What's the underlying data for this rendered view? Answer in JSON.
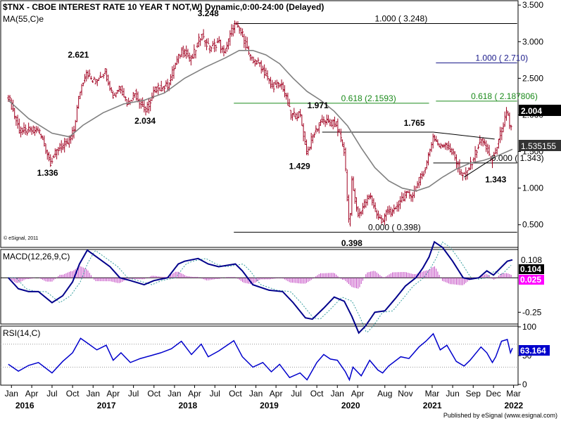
{
  "chart_data": [
    {
      "type": "candlestick",
      "title": "$TNX - CBOE INTEREST RATE 10 YEAR T NOT,W) Dynamic,0:00-24:00 (Delayed)",
      "indicator": "MA(55,C)e",
      "copyright": "© eSignal, 2011",
      "y_axis": {
        "min": 0.2,
        "max": 3.55,
        "ticks": [
          "0.500",
          "1.000",
          "1.500",
          "2.000",
          "2.500",
          "3.000",
          "3.500"
        ]
      },
      "last_price_label": "2.004",
      "ma_label": "1.535155",
      "price_path": [
        [
          "2016-01-01",
          2.26
        ],
        [
          "2016-02-20",
          1.78
        ],
        [
          "2016-04-01",
          1.78
        ],
        [
          "2016-05-15",
          1.8
        ],
        [
          "2016-07-08",
          1.36
        ],
        [
          "2016-08-15",
          1.55
        ],
        [
          "2016-09-20",
          1.6
        ],
        [
          "2016-10-20",
          1.78
        ],
        [
          "2016-11-15",
          2.3
        ],
        [
          "2016-12-15",
          2.6
        ],
        [
          "2017-01-15",
          2.45
        ],
        [
          "2017-03-10",
          2.6
        ],
        [
          "2017-04-15",
          2.25
        ],
        [
          "2017-05-15",
          2.4
        ],
        [
          "2017-06-20",
          2.15
        ],
        [
          "2017-07-20",
          2.3
        ],
        [
          "2017-09-08",
          2.05
        ],
        [
          "2017-10-20",
          2.35
        ],
        [
          "2017-12-15",
          2.4
        ],
        [
          "2018-01-20",
          2.7
        ],
        [
          "2018-02-20",
          2.9
        ],
        [
          "2018-04-01",
          2.75
        ],
        [
          "2018-05-15",
          3.1
        ],
        [
          "2018-06-20",
          2.9
        ],
        [
          "2018-08-01",
          3.0
        ],
        [
          "2018-08-25",
          2.82
        ],
        [
          "2018-10-08",
          3.24
        ],
        [
          "2018-11-15",
          3.1
        ],
        [
          "2018-12-25",
          2.74
        ],
        [
          "2019-02-01",
          2.7
        ],
        [
          "2019-03-25",
          2.4
        ],
        [
          "2019-05-15",
          2.4
        ],
        [
          "2019-06-20",
          2.0
        ],
        [
          "2019-08-01",
          2.0
        ],
        [
          "2019-09-01",
          1.47
        ],
        [
          "2019-09-25",
          1.7
        ],
        [
          "2019-11-08",
          1.94
        ],
        [
          "2019-12-15",
          1.88
        ],
        [
          "2020-01-10",
          1.88
        ],
        [
          "2020-02-15",
          1.5
        ],
        [
          "2020-03-09",
          0.4
        ],
        [
          "2020-03-20",
          1.1
        ],
        [
          "2020-04-15",
          0.62
        ],
        [
          "2020-06-08",
          0.9
        ],
        [
          "2020-07-15",
          0.62
        ],
        [
          "2020-08-05",
          0.52
        ],
        [
          "2020-08-25",
          0.72
        ],
        [
          "2020-09-20",
          0.65
        ],
        [
          "2020-10-25",
          0.85
        ],
        [
          "2020-11-15",
          0.9
        ],
        [
          "2020-12-20",
          0.92
        ],
        [
          "2021-01-15",
          1.1
        ],
        [
          "2021-02-15",
          1.3
        ],
        [
          "2021-03-20",
          1.72
        ],
        [
          "2021-04-20",
          1.55
        ],
        [
          "2021-05-15",
          1.62
        ],
        [
          "2021-06-20",
          1.45
        ],
        [
          "2021-07-20",
          1.2
        ],
        [
          "2021-08-05",
          1.15
        ],
        [
          "2021-09-01",
          1.3
        ],
        [
          "2021-10-20",
          1.67
        ],
        [
          "2021-11-15",
          1.55
        ],
        [
          "2021-12-05",
          1.35
        ],
        [
          "2021-12-25",
          1.5
        ],
        [
          "2022-01-20",
          1.8
        ],
        [
          "2022-02-15",
          2.05
        ],
        [
          "2022-03-01",
          1.72
        ],
        [
          "2022-03-10",
          2.0
        ]
      ],
      "ma55": [
        [
          "2016-01-01",
          2.2
        ],
        [
          "2016-04-01",
          1.95
        ],
        [
          "2016-07-15",
          1.75
        ],
        [
          "2016-10-01",
          1.7
        ],
        [
          "2016-12-01",
          1.86
        ],
        [
          "2017-03-01",
          2.03
        ],
        [
          "2017-06-01",
          2.15
        ],
        [
          "2017-09-01",
          2.2
        ],
        [
          "2017-12-01",
          2.3
        ],
        [
          "2018-03-01",
          2.5
        ],
        [
          "2018-06-01",
          2.65
        ],
        [
          "2018-09-01",
          2.78
        ],
        [
          "2018-11-01",
          2.88
        ],
        [
          "2019-01-01",
          2.88
        ],
        [
          "2019-03-01",
          2.82
        ],
        [
          "2019-05-01",
          2.7
        ],
        [
          "2019-07-01",
          2.5
        ],
        [
          "2019-09-01",
          2.32
        ],
        [
          "2019-11-01",
          2.2
        ],
        [
          "2020-01-01",
          2.05
        ],
        [
          "2020-03-01",
          1.85
        ],
        [
          "2020-05-01",
          1.55
        ],
        [
          "2020-07-01",
          1.28
        ],
        [
          "2020-09-01",
          1.1
        ],
        [
          "2020-11-01",
          1.0
        ],
        [
          "2021-01-01",
          0.96
        ],
        [
          "2021-03-01",
          1.02
        ],
        [
          "2021-05-01",
          1.15
        ],
        [
          "2021-07-01",
          1.26
        ],
        [
          "2021-09-01",
          1.34
        ],
        [
          "2021-11-01",
          1.38
        ],
        [
          "2022-01-01",
          1.44
        ],
        [
          "2022-03-10",
          1.53
        ]
      ],
      "levels": [
        {
          "name": "top",
          "value": 3.248,
          "x_from": "2018-10-08",
          "x_to": "2022-03-31",
          "label": "1.000 ( 3.248)",
          "label_x": "2020-07-01",
          "color": "#000000"
        },
        {
          "name": "bottom",
          "value": 0.398,
          "x_from": "2018-10-08",
          "x_to": "2022-03-31",
          "label": "0.000 ( 0.398)",
          "label_x": "2020-06-01",
          "color": "#000000"
        },
        {
          "name": "fib618-a",
          "value": 2.1593,
          "x_from": "2018-10-08",
          "x_to": "2021-03-01",
          "label": "0.618 (2.1593)",
          "label_x": "2020-02-01",
          "color": "#1a8a1a"
        },
        {
          "name": "fib618-b",
          "value": 2.187806,
          "x_from": "2021-04-01",
          "x_to": "2022-03-31",
          "label": "0.618 ( 2.187806)",
          "label_x": "2021-09-05",
          "color": "#1a8a1a"
        },
        {
          "name": "fib100",
          "value": 2.71,
          "x_from": "2021-04-01",
          "x_to": "2022-03-31",
          "label": "1.000 ( 2.710)",
          "label_x": "2021-09-25",
          "color": "#1a1a8a"
        },
        {
          "name": "base",
          "value": 1.343,
          "x_from": "2021-03-20",
          "x_to": "2022-03-31",
          "label": "0.000 ( 1.343)",
          "label_x": "2021-12-05",
          "color": "#000000"
        },
        {
          "name": "resistance",
          "value": 1.765,
          "x_from": "2019-11-08",
          "x_to": "2021-03-20",
          "label": "",
          "label_x": "",
          "color": "#000000"
        }
      ],
      "triangle": [
        {
          "from": [
            "2021-03-20",
            1.765
          ],
          "to": [
            "2021-12-20",
            1.67
          ]
        },
        {
          "from": [
            "2021-08-05",
            1.15
          ],
          "to": [
            "2021-12-20",
            1.42
          ]
        }
      ],
      "annotations": [
        {
          "text": "2.621",
          "x": "2016-11-10",
          "y": 2.78
        },
        {
          "text": "1.336",
          "x": "2016-06-25",
          "y": 1.17
        },
        {
          "text": "2.034",
          "x": "2017-09-05",
          "y": 1.88
        },
        {
          "text": "3.248",
          "x": "2018-06-15",
          "y": 3.35
        },
        {
          "text": "1.429",
          "x": "2019-07-30",
          "y": 1.26
        },
        {
          "text": "1.971",
          "x": "2019-10-20",
          "y": 2.09
        },
        {
          "text": "0.398",
          "x": "2020-03-20",
          "y": 0.21
        },
        {
          "text": "1.765",
          "x": "2020-12-25",
          "y": 1.85
        },
        {
          "text": "1.343",
          "x": "2021-12-25",
          "y": 1.08
        }
      ]
    },
    {
      "type": "line",
      "title": "MACD(12,26,9,C)",
      "y_axis": {
        "min": -0.33,
        "max": 0.2,
        "ticks": [
          "-0.25"
        ]
      },
      "value_labels": {
        "top": "0.108",
        "macd": "0.104",
        "histogram": "0.025"
      },
      "macd": [
        [
          "2016-01-01",
          0.0
        ],
        [
          "2016-02-15",
          -0.08
        ],
        [
          "2016-04-01",
          -0.1
        ],
        [
          "2016-05-15",
          -0.1
        ],
        [
          "2016-07-15",
          -0.18
        ],
        [
          "2016-09-01",
          -0.13
        ],
        [
          "2016-10-15",
          -0.03
        ],
        [
          "2016-11-15",
          0.1
        ],
        [
          "2016-12-20",
          0.2
        ],
        [
          "2017-02-01",
          0.15
        ],
        [
          "2017-04-01",
          0.08
        ],
        [
          "2017-05-15",
          0.0
        ],
        [
          "2017-07-01",
          -0.02
        ],
        [
          "2017-09-01",
          -0.05
        ],
        [
          "2017-10-15",
          -0.02
        ],
        [
          "2017-12-15",
          0.0
        ],
        [
          "2018-02-01",
          0.1
        ],
        [
          "2018-03-01",
          0.12
        ],
        [
          "2018-05-01",
          0.14
        ],
        [
          "2018-06-15",
          0.1
        ],
        [
          "2018-08-01",
          0.08
        ],
        [
          "2018-10-15",
          0.1
        ],
        [
          "2018-11-15",
          0.05
        ],
        [
          "2019-01-01",
          -0.05
        ],
        [
          "2019-03-15",
          -0.09
        ],
        [
          "2019-05-15",
          -0.1
        ],
        [
          "2019-07-01",
          -0.18
        ],
        [
          "2019-08-25",
          -0.29
        ],
        [
          "2019-09-25",
          -0.3
        ],
        [
          "2019-11-15",
          -0.22
        ],
        [
          "2020-01-01",
          -0.14
        ],
        [
          "2020-02-15",
          -0.17
        ],
        [
          "2020-03-20",
          -0.28
        ],
        [
          "2020-04-20",
          -0.4
        ],
        [
          "2020-05-20",
          -0.35
        ],
        [
          "2020-07-01",
          -0.25
        ],
        [
          "2020-08-15",
          -0.24
        ],
        [
          "2020-10-01",
          -0.15
        ],
        [
          "2020-11-15",
          -0.06
        ],
        [
          "2021-01-01",
          0.0
        ],
        [
          "2021-02-01",
          0.07
        ],
        [
          "2021-03-01",
          0.15
        ],
        [
          "2021-03-25",
          0.26
        ],
        [
          "2021-05-01",
          0.22
        ],
        [
          "2021-06-15",
          0.12
        ],
        [
          "2021-08-01",
          0.0
        ],
        [
          "2021-09-01",
          -0.01
        ],
        [
          "2021-10-10",
          0.0
        ],
        [
          "2021-11-15",
          0.05
        ],
        [
          "2021-12-15",
          0.02
        ],
        [
          "2022-01-15",
          0.07
        ],
        [
          "2022-02-15",
          0.12
        ],
        [
          "2022-03-10",
          0.13
        ]
      ]
    },
    {
      "type": "line",
      "title": "RSI(14,C)",
      "y_axis": {
        "min": 0,
        "max": 100,
        "ticks": [
          "0",
          "50",
          "100"
        ]
      },
      "value_label": "63.164",
      "rsi": [
        [
          "2016-01-01",
          35
        ],
        [
          "2016-02-15",
          23
        ],
        [
          "2016-04-01",
          33
        ],
        [
          "2016-05-15",
          38
        ],
        [
          "2016-07-15",
          20
        ],
        [
          "2016-09-01",
          40
        ],
        [
          "2016-10-15",
          55
        ],
        [
          "2016-11-20",
          80
        ],
        [
          "2016-12-20",
          72
        ],
        [
          "2017-02-01",
          60
        ],
        [
          "2017-03-15",
          68
        ],
        [
          "2017-04-15",
          42
        ],
        [
          "2017-05-20",
          55
        ],
        [
          "2017-07-01",
          38
        ],
        [
          "2017-08-15",
          45
        ],
        [
          "2017-10-01",
          50
        ],
        [
          "2017-11-15",
          55
        ],
        [
          "2018-01-01",
          62
        ],
        [
          "2018-02-15",
          75
        ],
        [
          "2018-04-01",
          52
        ],
        [
          "2018-05-15",
          70
        ],
        [
          "2018-06-15",
          48
        ],
        [
          "2018-08-01",
          58
        ],
        [
          "2018-10-08",
          76
        ],
        [
          "2018-11-15",
          48
        ],
        [
          "2019-01-01",
          30
        ],
        [
          "2019-02-15",
          38
        ],
        [
          "2019-03-25",
          22
        ],
        [
          "2019-05-01",
          35
        ],
        [
          "2019-06-15",
          12
        ],
        [
          "2019-08-01",
          20
        ],
        [
          "2019-09-01",
          8
        ],
        [
          "2019-10-15",
          38
        ],
        [
          "2019-11-15",
          52
        ],
        [
          "2019-12-15",
          44
        ],
        [
          "2020-01-15",
          42
        ],
        [
          "2020-02-20",
          22
        ],
        [
          "2020-03-09",
          8
        ],
        [
          "2020-03-25",
          30
        ],
        [
          "2020-05-01",
          15
        ],
        [
          "2020-06-08",
          42
        ],
        [
          "2020-07-15",
          25
        ],
        [
          "2020-08-05",
          20
        ],
        [
          "2020-09-01",
          32
        ],
        [
          "2020-10-25",
          48
        ],
        [
          "2020-12-01",
          45
        ],
        [
          "2021-01-15",
          65
        ],
        [
          "2021-02-15",
          75
        ],
        [
          "2021-03-20",
          88
        ],
        [
          "2021-04-20",
          60
        ],
        [
          "2021-05-20",
          68
        ],
        [
          "2021-07-01",
          40
        ],
        [
          "2021-08-05",
          32
        ],
        [
          "2021-09-01",
          42
        ],
        [
          "2021-10-20",
          65
        ],
        [
          "2021-11-15",
          55
        ],
        [
          "2021-12-10",
          38
        ],
        [
          "2021-12-25",
          48
        ],
        [
          "2022-01-20",
          75
        ],
        [
          "2022-02-15",
          78
        ],
        [
          "2022-03-01",
          55
        ],
        [
          "2022-03-10",
          63
        ]
      ]
    }
  ],
  "x_axis": {
    "months": [
      {
        "label": "Jan",
        "x": "2016-01-15"
      },
      {
        "label": "Apr",
        "x": "2016-04-15"
      },
      {
        "label": "Jul",
        "x": "2016-07-15"
      },
      {
        "label": "Oct",
        "x": "2016-10-15"
      },
      {
        "label": "Jan",
        "x": "2017-01-15"
      },
      {
        "label": "Apr",
        "x": "2017-04-15"
      },
      {
        "label": "Jul",
        "x": "2017-07-15"
      },
      {
        "label": "Oct",
        "x": "2017-10-15"
      },
      {
        "label": "Jan",
        "x": "2018-01-15"
      },
      {
        "label": "Apr",
        "x": "2018-04-15"
      },
      {
        "label": "Jul",
        "x": "2018-07-15"
      },
      {
        "label": "Oct",
        "x": "2018-10-15"
      },
      {
        "label": "Jan",
        "x": "2019-01-15"
      },
      {
        "label": "Apr",
        "x": "2019-04-15"
      },
      {
        "label": "Jul",
        "x": "2019-07-15"
      },
      {
        "label": "Oct",
        "x": "2019-10-15"
      },
      {
        "label": "Jan",
        "x": "2020-01-15"
      },
      {
        "label": "Apr",
        "x": "2020-04-15"
      },
      {
        "label": "Aug",
        "x": "2020-08-15"
      },
      {
        "label": "Nov",
        "x": "2020-11-15"
      },
      {
        "label": "Mar",
        "x": "2021-03-15"
      },
      {
        "label": "Jun",
        "x": "2021-06-15"
      },
      {
        "label": "Sep",
        "x": "2021-09-15"
      },
      {
        "label": "Dec",
        "x": "2021-12-15"
      },
      {
        "label": "Mar",
        "x": "2022-03-15"
      }
    ],
    "years": [
      {
        "label": "2016",
        "x": "2016-01-01"
      },
      {
        "label": "2017",
        "x": "2017-01-01"
      },
      {
        "label": "2018",
        "x": "2018-01-01"
      },
      {
        "label": "2019",
        "x": "2019-01-01"
      },
      {
        "label": "2020",
        "x": "2020-01-01"
      },
      {
        "label": "2021",
        "x": "2021-01-01"
      },
      {
        "label": "2022",
        "x": "2022-01-01"
      }
    ]
  },
  "footer": "Published by eSignal (www.esignal.com)",
  "colors": {
    "price": "#a00020",
    "ma": "#808080",
    "macd": "#00008b",
    "signal": "#3aa0a0",
    "histogram": "#c040c0",
    "rsi": "#0000cc",
    "label_bg_black": "#000000",
    "label_bg_blue": "#0000cc",
    "label_bg_magenta": "#ff00ff",
    "label_bg_gray": "#333333"
  }
}
